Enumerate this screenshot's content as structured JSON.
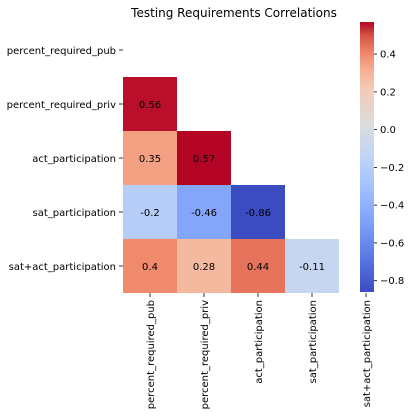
{
  "chart_data": {
    "type": "heatmap",
    "title": "Testing Requirements Correlations",
    "rows": [
      "percent_required_pub",
      "percent_required_priv",
      "act_participation",
      "sat_participation",
      "sat+act_participation"
    ],
    "columns": [
      "percent_required_pub",
      "percent_required_priv",
      "act_participation",
      "sat_participation",
      "sat+act_participation"
    ],
    "mask": "upper-triangle-including-diagonal",
    "cells": [
      {
        "row": 1,
        "col": 0,
        "value": 0.56,
        "label": "0.56"
      },
      {
        "row": 2,
        "col": 0,
        "value": 0.35,
        "label": "0.35"
      },
      {
        "row": 2,
        "col": 1,
        "value": 0.57,
        "label": "0.57"
      },
      {
        "row": 3,
        "col": 0,
        "value": -0.2,
        "label": "-0.2"
      },
      {
        "row": 3,
        "col": 1,
        "value": -0.46,
        "label": "-0.46"
      },
      {
        "row": 3,
        "col": 2,
        "value": -0.86,
        "label": "-0.86"
      },
      {
        "row": 4,
        "col": 0,
        "value": 0.4,
        "label": "0.4"
      },
      {
        "row": 4,
        "col": 1,
        "value": 0.28,
        "label": "0.28"
      },
      {
        "row": 4,
        "col": 2,
        "value": 0.44,
        "label": "0.44"
      },
      {
        "row": 4,
        "col": 3,
        "value": -0.11,
        "label": "-0.11"
      }
    ],
    "colormap": "coolwarm",
    "colorbar": {
      "vmin": -0.86,
      "vmax": 0.57,
      "ticks": [
        0.4,
        0.2,
        0.0,
        -0.2,
        -0.4,
        -0.6,
        -0.8
      ],
      "tick_labels": [
        "0.4",
        "0.2",
        "0.0",
        "−0.2",
        "−0.4",
        "−0.6",
        "−0.8"
      ]
    }
  }
}
